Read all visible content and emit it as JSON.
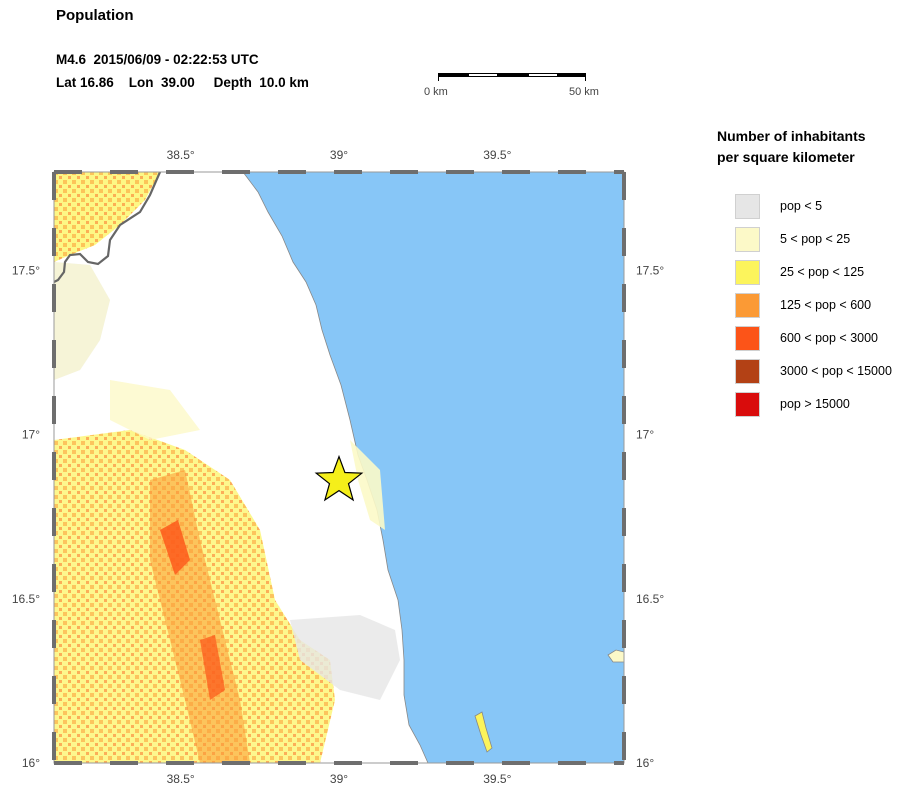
{
  "header": {
    "title": "Population",
    "event_line": "M4.6  2015/06/09 - 02:22:53 UTC",
    "location_line": "Lat 16.86    Lon  39.00     Depth  10.0 km"
  },
  "scale_bar": {
    "start_label": "0 km",
    "end_label": "50 km",
    "length_km": 50
  },
  "map": {
    "lon_range": [
      38.1,
      39.9
    ],
    "lat_range": [
      16.0,
      17.8
    ],
    "lon_ticks": [
      {
        "value": 38.5,
        "label": "38.5°"
      },
      {
        "value": 39.0,
        "label": "39°"
      },
      {
        "value": 39.5,
        "label": "39.5°"
      }
    ],
    "lat_ticks": [
      {
        "value": 17.5,
        "label": "17.5°"
      },
      {
        "value": 17.0,
        "label": "17°"
      },
      {
        "value": 16.5,
        "label": "16.5°"
      },
      {
        "value": 16.0,
        "label": "16°"
      }
    ],
    "epicenter": {
      "lat": 16.86,
      "lon": 39.0,
      "marker": "star-icon",
      "color": "#f5ef1a"
    },
    "water_color": "#87c6f7",
    "land_color": "#ffffff",
    "coastline_color": "#888888",
    "border_color": "#666666"
  },
  "legend": {
    "title_line1": "Number of inhabitants",
    "title_line2": "per square kilometer",
    "items": [
      {
        "label": "pop < 5",
        "color": "#e6e6e6"
      },
      {
        "label": "5 < pop < 25",
        "color": "#fcf9c8"
      },
      {
        "label": "25 < pop < 125",
        "color": "#fcf45c"
      },
      {
        "label": "125 < pop < 600",
        "color": "#fb9a35"
      },
      {
        "label": "600 < pop < 3000",
        "color": "#fc5418"
      },
      {
        "label": "3000 < pop < 15000",
        "color": "#b34115"
      },
      {
        "label": "pop > 15000",
        "color": "#d90c0c"
      }
    ]
  }
}
